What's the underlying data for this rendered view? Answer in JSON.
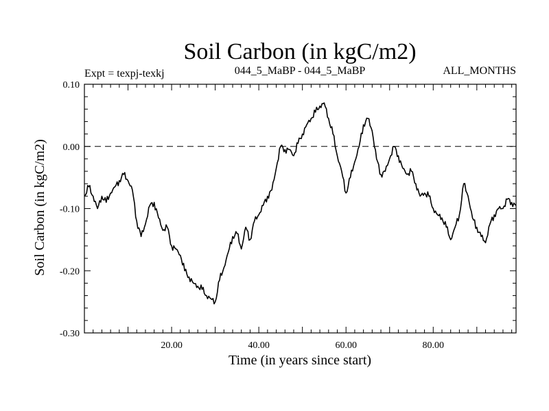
{
  "chart_data": {
    "type": "line",
    "title": "Soil Carbon (in kgC/m2)",
    "subtitle_left": "Expt = texpj-texkj",
    "subtitle_center": "044_5_MaBP - 044_5_MaBP",
    "subtitle_right": "ALL_MONTHS",
    "xlabel": "Time (in years since start)",
    "ylabel": "Soil Carbon (in kgC/m2)",
    "xlim": [
      0,
      99
    ],
    "ylim": [
      -0.3,
      0.1
    ],
    "x_ticks": [
      20,
      40,
      60,
      80
    ],
    "x_tick_labels": [
      "20.00",
      "40.00",
      "60.00",
      "80.00"
    ],
    "y_ticks": [
      0.1,
      0.0,
      -0.1,
      -0.2,
      -0.3
    ],
    "y_tick_labels": [
      "0.10",
      "0.00",
      "-0.10",
      "-0.20",
      "-0.30"
    ],
    "reference_line": 0.0,
    "series": [
      {
        "name": "Soil Carbon",
        "color": "#000000",
        "x": [
          0,
          1,
          2,
          3,
          4,
          5,
          6,
          7,
          8,
          9,
          10,
          11,
          12,
          13,
          14,
          15,
          16,
          17,
          18,
          19,
          20,
          21,
          22,
          23,
          24,
          25,
          26,
          27,
          28,
          29,
          30,
          31,
          32,
          33,
          34,
          35,
          36,
          37,
          38,
          39,
          40,
          41,
          42,
          43,
          44,
          45,
          46,
          47,
          48,
          49,
          50,
          51,
          52,
          53,
          54,
          55,
          56,
          57,
          58,
          59,
          60,
          61,
          62,
          63,
          64,
          65,
          66,
          67,
          68,
          69,
          70,
          71,
          72,
          73,
          74,
          75,
          76,
          77,
          78,
          79,
          80,
          81,
          82,
          83,
          84,
          85,
          86,
          87,
          88,
          89,
          90,
          91,
          92,
          93,
          94,
          95,
          96,
          97,
          98,
          99
        ],
        "values": [
          -0.08,
          -0.065,
          -0.08,
          -0.1,
          -0.08,
          -0.09,
          -0.075,
          -0.065,
          -0.055,
          -0.045,
          -0.055,
          -0.07,
          -0.12,
          -0.145,
          -0.125,
          -0.095,
          -0.09,
          -0.115,
          -0.135,
          -0.13,
          -0.16,
          -0.165,
          -0.175,
          -0.2,
          -0.21,
          -0.22,
          -0.225,
          -0.23,
          -0.24,
          -0.245,
          -0.25,
          -0.215,
          -0.195,
          -0.17,
          -0.145,
          -0.14,
          -0.165,
          -0.13,
          -0.15,
          -0.12,
          -0.11,
          -0.095,
          -0.08,
          -0.07,
          -0.035,
          0.0,
          -0.005,
          -0.005,
          -0.015,
          0.005,
          0.02,
          0.035,
          0.045,
          0.055,
          0.065,
          0.07,
          0.045,
          0.02,
          -0.015,
          -0.04,
          -0.075,
          -0.05,
          -0.025,
          0.0,
          0.035,
          0.045,
          0.025,
          -0.02,
          -0.045,
          -0.04,
          -0.02,
          0.0,
          -0.015,
          -0.035,
          -0.045,
          -0.04,
          -0.06,
          -0.08,
          -0.075,
          -0.08,
          -0.1,
          -0.11,
          -0.115,
          -0.13,
          -0.15,
          -0.13,
          -0.11,
          -0.06,
          -0.08,
          -0.115,
          -0.13,
          -0.145,
          -0.155,
          -0.125,
          -0.11,
          -0.1,
          -0.1,
          -0.085,
          -0.09,
          -0.095
        ]
      }
    ]
  }
}
